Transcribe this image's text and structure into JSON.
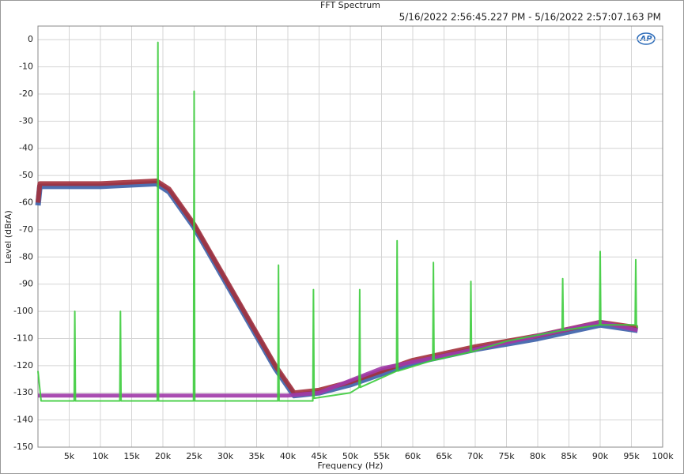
{
  "chart_data": {
    "type": "line",
    "title": "FFT Spectrum",
    "subtitle": "5/16/2022 2:56:45.227 PM - 5/16/2022 2:57:07.163 PM",
    "logo": "AP",
    "xlabel": "Frequency (Hz)",
    "ylabel": "Level (dBrA)",
    "xlim": [
      0,
      100000
    ],
    "ylim": [
      -150,
      5
    ],
    "xticks": [
      {
        "value": 5000,
        "label": "5k"
      },
      {
        "value": 10000,
        "label": "10k"
      },
      {
        "value": 15000,
        "label": "15k"
      },
      {
        "value": 20000,
        "label": "20k"
      },
      {
        "value": 25000,
        "label": "25k"
      },
      {
        "value": 30000,
        "label": "30k"
      },
      {
        "value": 35000,
        "label": "35k"
      },
      {
        "value": 40000,
        "label": "40k"
      },
      {
        "value": 45000,
        "label": "45k"
      },
      {
        "value": 50000,
        "label": "50k"
      },
      {
        "value": 55000,
        "label": "55k"
      },
      {
        "value": 60000,
        "label": "60k"
      },
      {
        "value": 65000,
        "label": "65k"
      },
      {
        "value": 70000,
        "label": "70k"
      },
      {
        "value": 75000,
        "label": "75k"
      },
      {
        "value": 80000,
        "label": "80k"
      },
      {
        "value": 85000,
        "label": "85k"
      },
      {
        "value": 90000,
        "label": "90k"
      },
      {
        "value": 95000,
        "label": "95k"
      },
      {
        "value": 100000,
        "label": "100k"
      }
    ],
    "yticks": [
      0,
      -10,
      -20,
      -30,
      -40,
      -50,
      -60,
      -70,
      -80,
      -90,
      -100,
      -110,
      -120,
      -130,
      -140,
      -150
    ],
    "grid": true,
    "series": [
      {
        "color": "#3b5fa8",
        "x": [
          0,
          300,
          10000,
          19000,
          21000,
          25000,
          30000,
          35000,
          38000,
          41000,
          45000,
          50000,
          55000,
          60000,
          70000,
          80000,
          90000,
          96000
        ],
        "values": [
          -61,
          -54,
          -54,
          -53,
          -56,
          -69,
          -89,
          -109,
          -121,
          -131,
          -130,
          -127,
          -123,
          -119,
          -114,
          -110,
          -105,
          -107
        ]
      },
      {
        "color": "#a3303c",
        "x": [
          0,
          300,
          10000,
          19000,
          21000,
          25000,
          30000,
          35000,
          38000,
          41000,
          45000,
          50000,
          55000,
          60000,
          70000,
          80000,
          90000,
          96000
        ],
        "values": [
          -60,
          -53,
          -53,
          -52,
          -55,
          -68,
          -88,
          -108,
          -120,
          -130,
          -129,
          -126,
          -122,
          -118,
          -113,
          -109,
          -104,
          -106
        ]
      },
      {
        "color": "#a03aa8",
        "x": [
          0,
          40000,
          45000,
          55000,
          70000,
          90000,
          96000
        ],
        "values": [
          -131,
          -131,
          -130,
          -121,
          -114,
          -104,
          -107
        ]
      },
      {
        "color": "#3ccc3c",
        "x": [
          0,
          500,
          5800,
          5900,
          6000,
          13100,
          13200,
          13300,
          19100,
          19200,
          19300,
          24900,
          25000,
          25100,
          38400,
          38500,
          38600,
          44000,
          44100,
          44200,
          50000,
          51400,
          51500,
          51600,
          57400,
          57500,
          57600,
          63200,
          63300,
          63400,
          69200,
          69300,
          69400,
          75000,
          83900,
          84000,
          84100,
          89900,
          90000,
          90100,
          95600,
          95700,
          95800,
          96000
        ],
        "values": [
          -122,
          -133,
          -133,
          -100,
          -133,
          -133,
          -100,
          -133,
          -133,
          -1,
          -133,
          -133,
          -19,
          -133,
          -133,
          -83,
          -133,
          -133,
          -92,
          -132,
          -130,
          -128,
          -92,
          -128,
          -122,
          -74,
          -122,
          -118,
          -82,
          -118,
          -115,
          -89,
          -115,
          -111,
          -107,
          -88,
          -107,
          -105,
          -78,
          -105,
          -105,
          -81,
          -105,
          -106
        ]
      }
    ]
  }
}
